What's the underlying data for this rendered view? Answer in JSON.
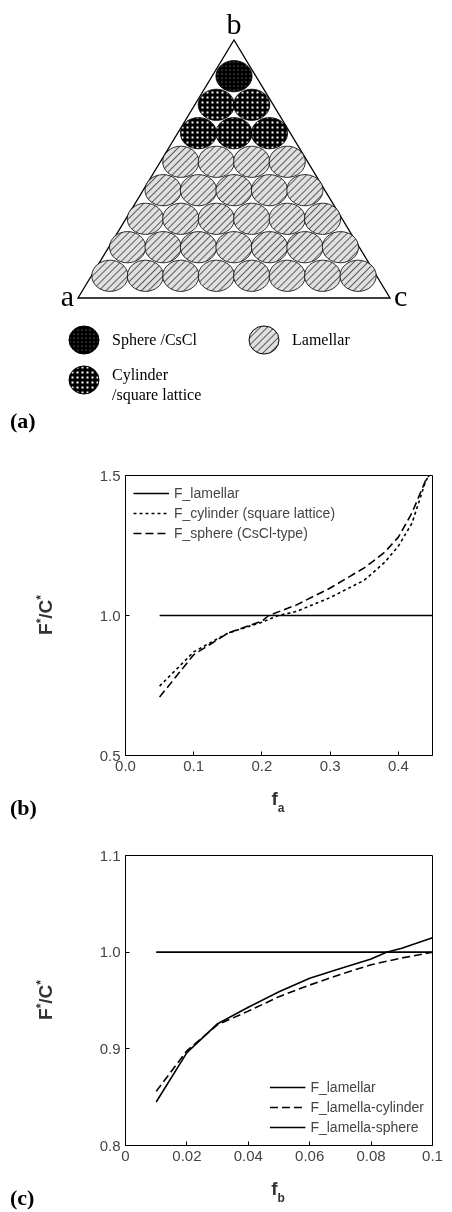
{
  "chart_data": [
    {
      "type": "other",
      "annotations": [
        "b",
        "a",
        "c",
        "Sphere /CsCl",
        "Lamellar",
        "Cylinder\n/square lattice",
        "(a)"
      ]
    },
    {
      "type": "line",
      "xlabel": "f$_{a}$",
      "ylabel": "F$^{*}$/C$^{*}$",
      "xlim": [
        0.0,
        0.45
      ],
      "ylim": [
        0.5,
        1.5
      ],
      "xticks": [
        {
          "value": 0.0,
          "label": "0.0"
        },
        0.1,
        0.2,
        0.3,
        0.4
      ],
      "yticks": [
        0.5,
        {
          "value": 1.0,
          "label": "1.0"
        },
        1.5
      ],
      "grid": false,
      "legend": "top left",
      "annotations": [
        "(b)"
      ],
      "series": [
        {
          "name": "F_lamellar",
          "color": "#000000",
          "line_style": "solid",
          "x": [
            0.05,
            0.45
          ],
          "values": [
            1.0,
            1.0
          ]
        },
        {
          "name": "F_cylinder (square lattice)",
          "color": "#000000",
          "line_style": "dotted",
          "x": [
            0.05,
            0.1,
            0.15,
            0.2,
            0.224,
            0.25,
            0.3,
            0.35,
            0.38,
            0.4,
            0.42,
            0.44,
            0.445
          ],
          "values": [
            0.748,
            0.87,
            0.937,
            0.976,
            1.0,
            1.014,
            1.064,
            1.126,
            1.19,
            1.248,
            1.33,
            1.48,
            1.5
          ]
        },
        {
          "name": "F_sphere (CsCl-type)",
          "color": "#000000",
          "line_style": "dashed",
          "x": [
            0.05,
            0.1,
            0.15,
            0.2,
            0.21,
            0.25,
            0.3,
            0.35,
            0.38,
            0.4,
            0.42,
            0.44,
            0.445
          ],
          "values": [
            0.709,
            0.86,
            0.937,
            0.98,
            1.0,
            1.037,
            1.098,
            1.17,
            1.226,
            1.28,
            1.367,
            1.483,
            1.5
          ]
        }
      ]
    },
    {
      "type": "line",
      "xlabel": "f$_{b}$",
      "ylabel": "F$^{*}$/C$^{*}$",
      "xlim": [
        0,
        0.1
      ],
      "ylim": [
        0.8,
        1.1
      ],
      "xticks": [
        0,
        0.02,
        0.04,
        0.06,
        0.08,
        0.1
      ],
      "yticks": [
        0.8,
        0.9,
        {
          "value": 1.0,
          "label": "1.0"
        },
        1.1
      ],
      "grid": false,
      "legend": "bottom right",
      "annotations": [
        "(c)"
      ],
      "series": [
        {
          "name": "F_lamellar",
          "color": "#000000",
          "line_style": "solid",
          "x": [
            0.01,
            0.1
          ],
          "values": [
            1.0,
            1.0
          ]
        },
        {
          "name": "F_lamella-cylinder",
          "color": "#000000",
          "line_style": "dashed",
          "x": [
            0.01,
            0.02,
            0.03,
            0.04,
            0.05,
            0.06,
            0.07,
            0.08,
            0.09,
            0.1
          ],
          "values": [
            0.856,
            0.898,
            0.925,
            0.939,
            0.954,
            0.966,
            0.977,
            0.987,
            0.994,
            1.0
          ]
        },
        {
          "name": "F_lamella-sphere",
          "color": "#000000",
          "line_style": "solid",
          "x": [
            0.01,
            0.02,
            0.03,
            0.04,
            0.05,
            0.06,
            0.07,
            0.08,
            0.085,
            0.09,
            0.1
          ],
          "values": [
            0.845,
            0.896,
            0.926,
            0.943,
            0.959,
            0.973,
            0.983,
            0.993,
            1.0,
            1.004,
            1.015
          ]
        }
      ]
    }
  ]
}
